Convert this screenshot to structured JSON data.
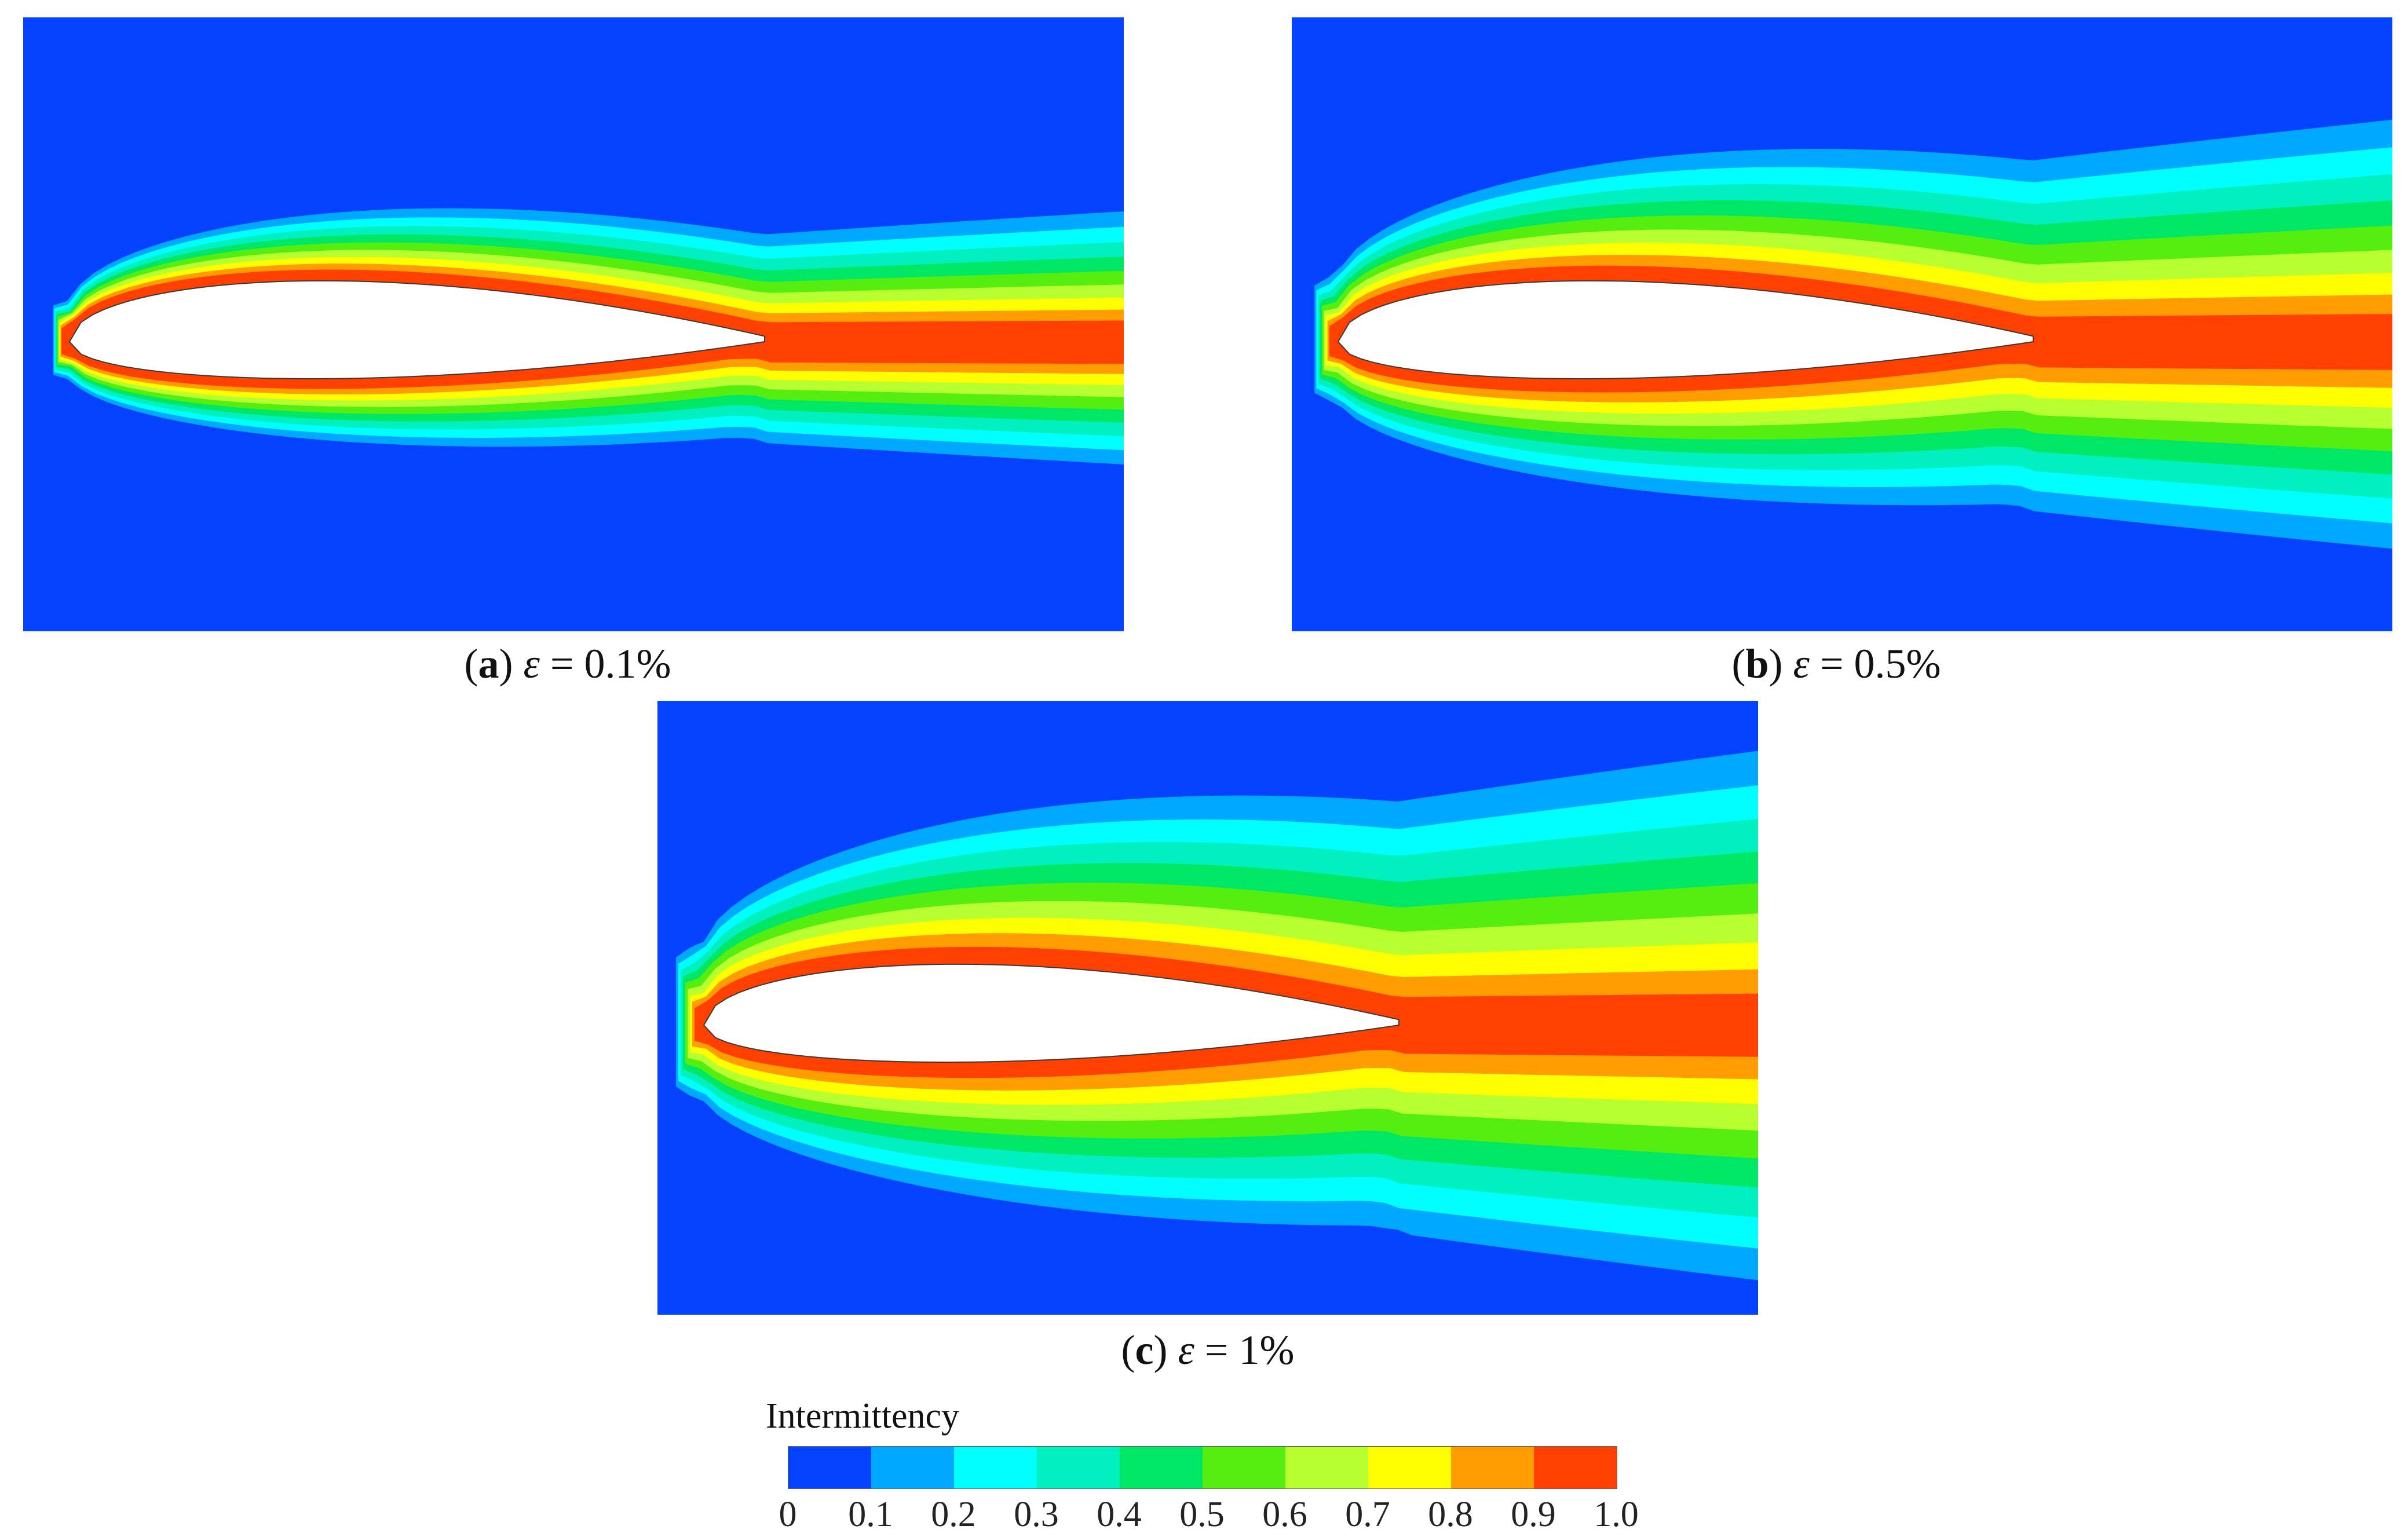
{
  "legend": {
    "title": "Intermittency",
    "colors": [
      "#0542ff",
      "#01a8ff",
      "#00ffff",
      "#00f0c0",
      "#00e766",
      "#55ee10",
      "#b8ff30",
      "#ffff00",
      "#ff9d00",
      "#ff4000"
    ],
    "ticks": [
      "0",
      "0.1",
      "0.2",
      "0.3",
      "0.4",
      "0.5",
      "0.6",
      "0.7",
      "0.8",
      "0.9",
      "1.0"
    ]
  },
  "panels": [
    {
      "id": "a",
      "letter": "a",
      "symbol": "ε",
      "value": "= 0.1%",
      "spread": 0.45,
      "wake_level": 1.0
    },
    {
      "id": "b",
      "letter": "b",
      "symbol": "ε",
      "value": "= 0.5%",
      "spread": 0.8,
      "wake_level": 1.0
    },
    {
      "id": "c",
      "letter": "c",
      "symbol": "ε",
      "value": "= 1%",
      "spread": 1.0,
      "wake_level": 1.0
    }
  ],
  "colors": {
    "background_level_color": "#0542ff",
    "airfoil_fill": "#ffffff"
  }
}
